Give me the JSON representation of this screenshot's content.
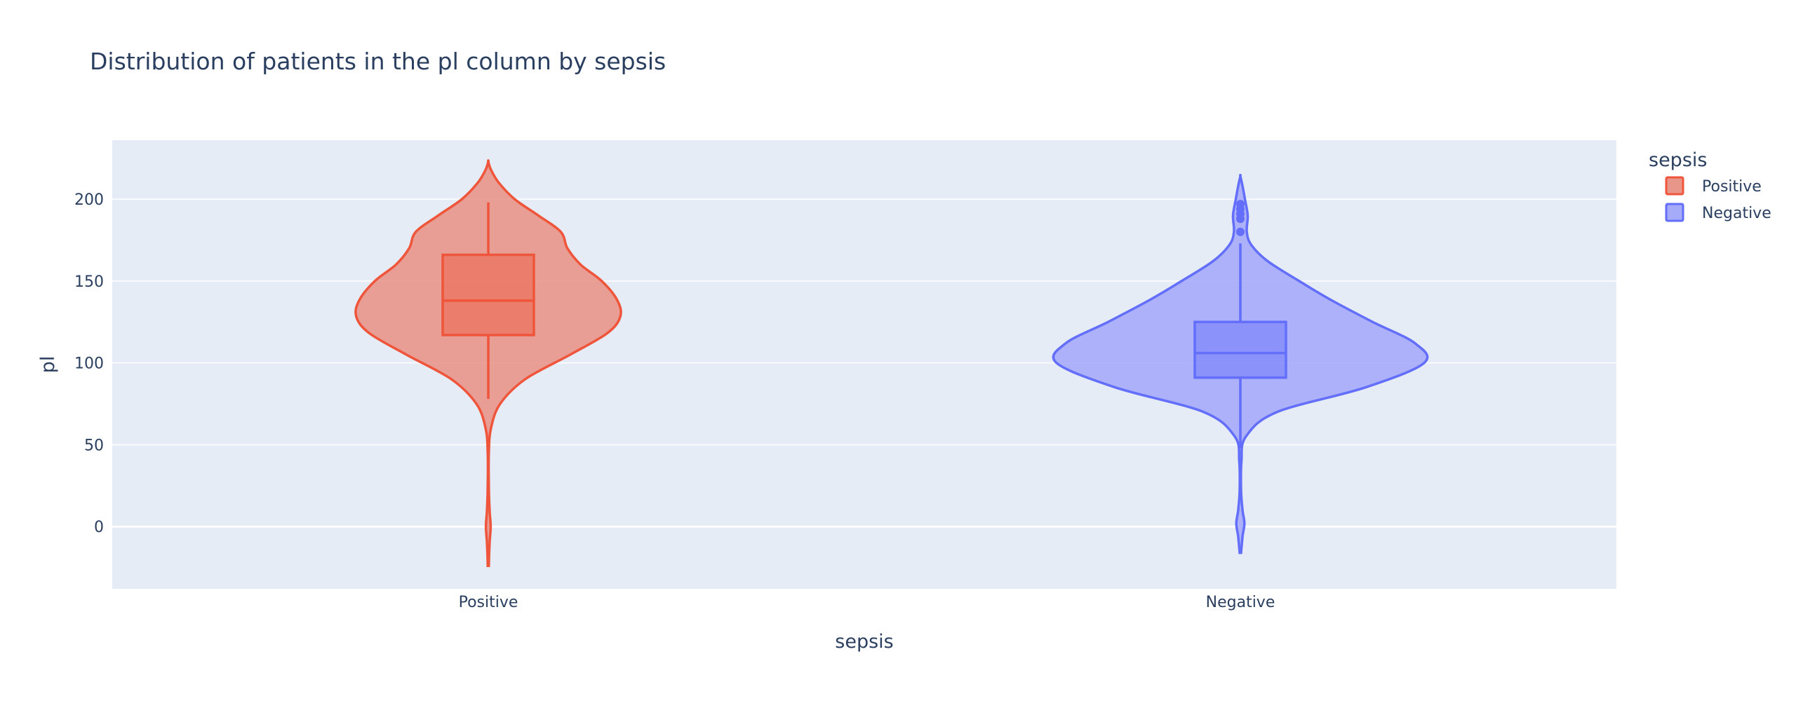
{
  "chart_data": {
    "type": "violin",
    "title": "Distribution of patients in the pl column by sepsis",
    "xlabel": "sepsis",
    "ylabel": "pl",
    "ylim": [
      -38,
      236
    ],
    "yticks": [
      0,
      50,
      100,
      150,
      200
    ],
    "categories": [
      "Positive",
      "Negative"
    ],
    "grid": true,
    "legend": {
      "title": "sepsis",
      "position": "top-right",
      "entries": [
        "Positive",
        "Negative"
      ]
    },
    "series": [
      {
        "name": "Positive",
        "color": "#ef553b",
        "fill": "#e8968a",
        "box": {
          "q1": 117,
          "median": 138,
          "q3": 166,
          "whisker_low": 78,
          "whisker_high": 198
        },
        "range": [
          -24,
          223
        ],
        "outliers": [],
        "density": [
          [
            -24,
            0.004
          ],
          [
            -10,
            0.01
          ],
          [
            0,
            0.018
          ],
          [
            10,
            0.01
          ],
          [
            25,
            0.004
          ],
          [
            45,
            0.004
          ],
          [
            60,
            0.02
          ],
          [
            75,
            0.09
          ],
          [
            90,
            0.28
          ],
          [
            105,
            0.62
          ],
          [
            118,
            0.9
          ],
          [
            128,
            1.0
          ],
          [
            138,
            0.98
          ],
          [
            150,
            0.86
          ],
          [
            160,
            0.7
          ],
          [
            170,
            0.6
          ],
          [
            180,
            0.55
          ],
          [
            190,
            0.38
          ],
          [
            200,
            0.2
          ],
          [
            210,
            0.08
          ],
          [
            218,
            0.02
          ],
          [
            223,
            0.0
          ]
        ]
      },
      {
        "name": "Negative",
        "color": "#636efa",
        "fill": "#a5abf9",
        "box": {
          "q1": 91,
          "median": 106,
          "q3": 125,
          "whisker_low": 48,
          "whisker_high": 173
        },
        "range": [
          -16,
          214
        ],
        "outliers": [
          180,
          188,
          191,
          194,
          197
        ],
        "density": [
          [
            -16,
            0.004
          ],
          [
            -6,
            0.012
          ],
          [
            2,
            0.022
          ],
          [
            10,
            0.012
          ],
          [
            22,
            0.004
          ],
          [
            40,
            0.006
          ],
          [
            55,
            0.03
          ],
          [
            70,
            0.2
          ],
          [
            85,
            0.68
          ],
          [
            100,
            1.0
          ],
          [
            112,
            0.95
          ],
          [
            125,
            0.72
          ],
          [
            138,
            0.5
          ],
          [
            150,
            0.32
          ],
          [
            162,
            0.15
          ],
          [
            172,
            0.06
          ],
          [
            180,
            0.035
          ],
          [
            190,
            0.04
          ],
          [
            200,
            0.025
          ],
          [
            208,
            0.012
          ],
          [
            214,
            0.0
          ]
        ]
      }
    ]
  }
}
